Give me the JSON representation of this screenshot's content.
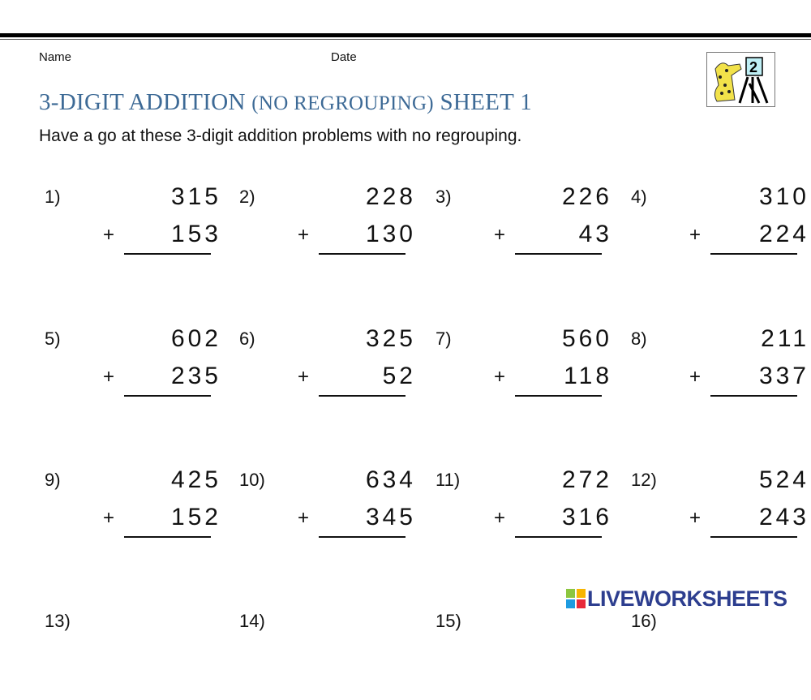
{
  "header": {
    "name_label": "Name",
    "date_label": "Date"
  },
  "title_main": "3-DIGIT ADDITION ",
  "title_paren": "(NO REGROUPING)",
  "title_end": " SHEET 1",
  "subtitle": "Have a go at these 3-digit addition problems with no regrouping.",
  "logo_digit": "2",
  "operator": "+",
  "problems": [
    {
      "label": "1)",
      "top": "315",
      "bottom": "153"
    },
    {
      "label": "2)",
      "top": "228",
      "bottom": "130"
    },
    {
      "label": "3)",
      "top": "226",
      "bottom": "43"
    },
    {
      "label": "4)",
      "top": "310",
      "bottom": "224"
    },
    {
      "label": "5)",
      "top": "602",
      "bottom": "235"
    },
    {
      "label": "6)",
      "top": "325",
      "bottom": "52"
    },
    {
      "label": "7)",
      "top": "560",
      "bottom": "118"
    },
    {
      "label": "8)",
      "top": "211",
      "bottom": "337"
    },
    {
      "label": "9)",
      "top": "425",
      "bottom": "152"
    },
    {
      "label": "10)",
      "top": "634",
      "bottom": "345"
    },
    {
      "label": "11)",
      "top": "272",
      "bottom": "316"
    },
    {
      "label": "12)",
      "top": "524",
      "bottom": "243"
    },
    {
      "label": "13)",
      "top": "",
      "bottom": ""
    },
    {
      "label": "14)",
      "top": "",
      "bottom": ""
    },
    {
      "label": "15)",
      "top": "",
      "bottom": ""
    },
    {
      "label": "16)",
      "top": "",
      "bottom": ""
    }
  ],
  "watermark": "LIVEWORKSHEETS",
  "colors": {
    "title": "#3d6a96",
    "watermark": "#2d3e8f"
  }
}
